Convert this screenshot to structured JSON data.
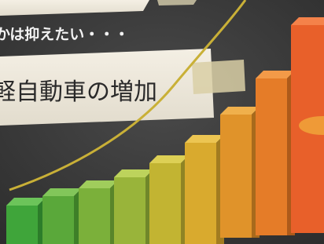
{
  "board": {
    "note": "かは抑えたい・・・",
    "headline": "軽自動車の増加"
  }
}
